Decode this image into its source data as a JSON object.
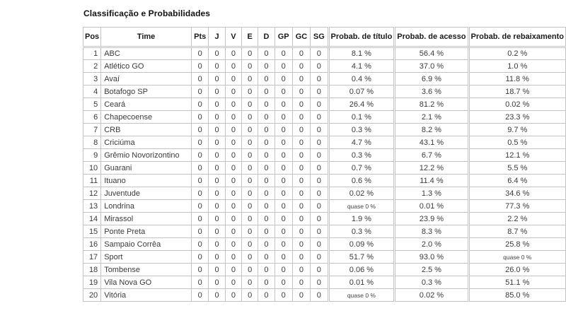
{
  "page": {
    "title": "Classificação e Probabilidades"
  },
  "colors": {
    "background": "#ffffff",
    "table_border": "#c3c3c3",
    "body_text": "#3a3a3a",
    "header_text": "#1a1a1a"
  },
  "table": {
    "headers": {
      "pos": "Pos",
      "time": "Time",
      "stats": [
        "Pts",
        "J",
        "V",
        "E",
        "D",
        "GP",
        "GC",
        "SG"
      ],
      "prob_titulo": "Probab. de título",
      "prob_acesso": "Probab. de acesso",
      "prob_rebaixamento": "Probab. de rebaixamento"
    },
    "rows": [
      {
        "pos": "1",
        "time": "ABC",
        "stats": [
          "0",
          "0",
          "0",
          "0",
          "0",
          "0",
          "0",
          "0"
        ],
        "probs": [
          "8.1 %",
          "56.4 %",
          "0.2 %"
        ]
      },
      {
        "pos": "2",
        "time": "Atlético GO",
        "stats": [
          "0",
          "0",
          "0",
          "0",
          "0",
          "0",
          "0",
          "0"
        ],
        "probs": [
          "4.1 %",
          "37.0 %",
          "1.0 %"
        ]
      },
      {
        "pos": "3",
        "time": "Avaí",
        "stats": [
          "0",
          "0",
          "0",
          "0",
          "0",
          "0",
          "0",
          "0"
        ],
        "probs": [
          "0.4 %",
          "6.9 %",
          "11.8 %"
        ]
      },
      {
        "pos": "4",
        "time": "Botafogo SP",
        "stats": [
          "0",
          "0",
          "0",
          "0",
          "0",
          "0",
          "0",
          "0"
        ],
        "probs": [
          "0.07 %",
          "3.6 %",
          "18.7 %"
        ]
      },
      {
        "pos": "5",
        "time": "Ceará",
        "stats": [
          "0",
          "0",
          "0",
          "0",
          "0",
          "0",
          "0",
          "0"
        ],
        "probs": [
          "26.4 %",
          "81.2 %",
          "0.02 %"
        ]
      },
      {
        "pos": "6",
        "time": "Chapecoense",
        "stats": [
          "0",
          "0",
          "0",
          "0",
          "0",
          "0",
          "0",
          "0"
        ],
        "probs": [
          "0.1 %",
          "2.1 %",
          "23.3 %"
        ]
      },
      {
        "pos": "7",
        "time": "CRB",
        "stats": [
          "0",
          "0",
          "0",
          "0",
          "0",
          "0",
          "0",
          "0"
        ],
        "probs": [
          "0.3 %",
          "8.2 %",
          "9.7 %"
        ]
      },
      {
        "pos": "8",
        "time": "Criciúma",
        "stats": [
          "0",
          "0",
          "0",
          "0",
          "0",
          "0",
          "0",
          "0"
        ],
        "probs": [
          "4.7 %",
          "43.1 %",
          "0.5 %"
        ]
      },
      {
        "pos": "9",
        "time": "Grêmio Novorizontino",
        "stats": [
          "0",
          "0",
          "0",
          "0",
          "0",
          "0",
          "0",
          "0"
        ],
        "probs": [
          "0.3 %",
          "6.7 %",
          "12.1 %"
        ]
      },
      {
        "pos": "10",
        "time": "Guarani",
        "stats": [
          "0",
          "0",
          "0",
          "0",
          "0",
          "0",
          "0",
          "0"
        ],
        "probs": [
          "0.7 %",
          "12.2 %",
          "5.5 %"
        ]
      },
      {
        "pos": "11",
        "time": "Ituano",
        "stats": [
          "0",
          "0",
          "0",
          "0",
          "0",
          "0",
          "0",
          "0"
        ],
        "probs": [
          "0.6 %",
          "11.4 %",
          "6.4 %"
        ]
      },
      {
        "pos": "12",
        "time": "Juventude",
        "stats": [
          "0",
          "0",
          "0",
          "0",
          "0",
          "0",
          "0",
          "0"
        ],
        "probs": [
          "0.02 %",
          "1.3 %",
          "34.6 %"
        ]
      },
      {
        "pos": "13",
        "time": "Londrina",
        "stats": [
          "0",
          "0",
          "0",
          "0",
          "0",
          "0",
          "0",
          "0"
        ],
        "probs": [
          "quase 0 %",
          "0.01 %",
          "77.3 %"
        ]
      },
      {
        "pos": "14",
        "time": "Mirassol",
        "stats": [
          "0",
          "0",
          "0",
          "0",
          "0",
          "0",
          "0",
          "0"
        ],
        "probs": [
          "1.9 %",
          "23.9 %",
          "2.2 %"
        ]
      },
      {
        "pos": "15",
        "time": "Ponte Preta",
        "stats": [
          "0",
          "0",
          "0",
          "0",
          "0",
          "0",
          "0",
          "0"
        ],
        "probs": [
          "0.3 %",
          "8.3 %",
          "8.7 %"
        ]
      },
      {
        "pos": "16",
        "time": "Sampaio Corrêa",
        "stats": [
          "0",
          "0",
          "0",
          "0",
          "0",
          "0",
          "0",
          "0"
        ],
        "probs": [
          "0.09 %",
          "2.0 %",
          "25.8 %"
        ]
      },
      {
        "pos": "17",
        "time": "Sport",
        "stats": [
          "0",
          "0",
          "0",
          "0",
          "0",
          "0",
          "0",
          "0"
        ],
        "probs": [
          "51.7 %",
          "93.0 %",
          "quase 0 %"
        ]
      },
      {
        "pos": "18",
        "time": "Tombense",
        "stats": [
          "0",
          "0",
          "0",
          "0",
          "0",
          "0",
          "0",
          "0"
        ],
        "probs": [
          "0.06 %",
          "2.5 %",
          "26.0 %"
        ]
      },
      {
        "pos": "19",
        "time": "Vila Nova GO",
        "stats": [
          "0",
          "0",
          "0",
          "0",
          "0",
          "0",
          "0",
          "0"
        ],
        "probs": [
          "0.01 %",
          "0.3 %",
          "51.1 %"
        ]
      },
      {
        "pos": "20",
        "time": "Vitória",
        "stats": [
          "0",
          "0",
          "0",
          "0",
          "0",
          "0",
          "0",
          "0"
        ],
        "probs": [
          "quase 0 %",
          "0.02 %",
          "85.0 %"
        ]
      }
    ]
  }
}
